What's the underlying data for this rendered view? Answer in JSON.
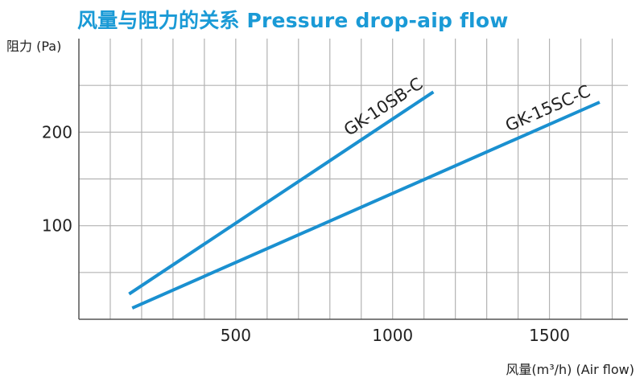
{
  "chart_data": {
    "type": "line",
    "title": "风量与阻力的关系 Pressure drop-aip flow",
    "ylabel": "阻力 (Pa)",
    "xlabel": "风量(m³/h)  (Air flow)",
    "xlim": [
      0,
      1750
    ],
    "ylim": [
      0,
      300
    ],
    "x_ticks": [
      500,
      1000,
      1500
    ],
    "y_ticks": [
      100,
      200
    ],
    "grid": true,
    "colors": {
      "line": "#1a90d0",
      "grid": "#b3b3b3",
      "title": "#1a9ad6"
    },
    "series": [
      {
        "name": "GK-10SB-C",
        "x": [
          160,
          1130
        ],
        "y": [
          27,
          243
        ]
      },
      {
        "name": "GK-15SC-C",
        "x": [
          170,
          1660
        ],
        "y": [
          12,
          232
        ]
      }
    ]
  }
}
